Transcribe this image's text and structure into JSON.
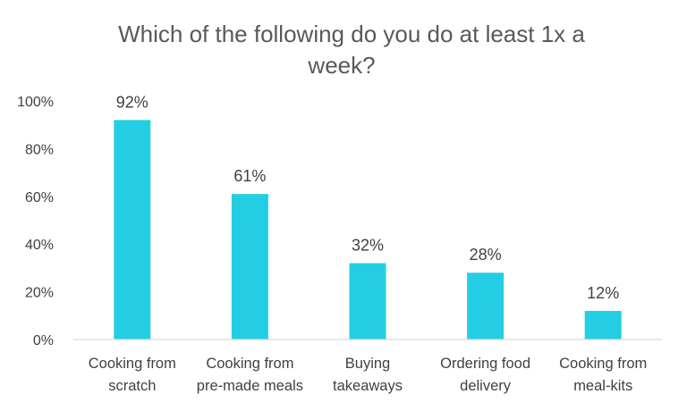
{
  "chart_data": {
    "type": "bar",
    "title_lines": [
      "Which of the following do you do at least 1x a",
      "week?"
    ],
    "categories": [
      [
        "Cooking from",
        "scratch"
      ],
      [
        "Cooking from",
        "pre-made meals"
      ],
      [
        "Buying",
        "takeaways"
      ],
      [
        "Ordering food",
        "delivery"
      ],
      [
        "Cooking from",
        "meal-kits"
      ]
    ],
    "values": [
      92,
      61,
      32,
      28,
      12
    ],
    "data_labels": [
      "92%",
      "61%",
      "32%",
      "28%",
      "12%"
    ],
    "ylim": [
      0,
      100
    ],
    "yticks": [
      0,
      20,
      40,
      60,
      80,
      100
    ],
    "ytick_labels": [
      "0%",
      "20%",
      "40%",
      "60%",
      "80%",
      "100%"
    ],
    "grid": false,
    "bar_color": "#23CEE5",
    "axis_color": "#D9D9D9"
  }
}
